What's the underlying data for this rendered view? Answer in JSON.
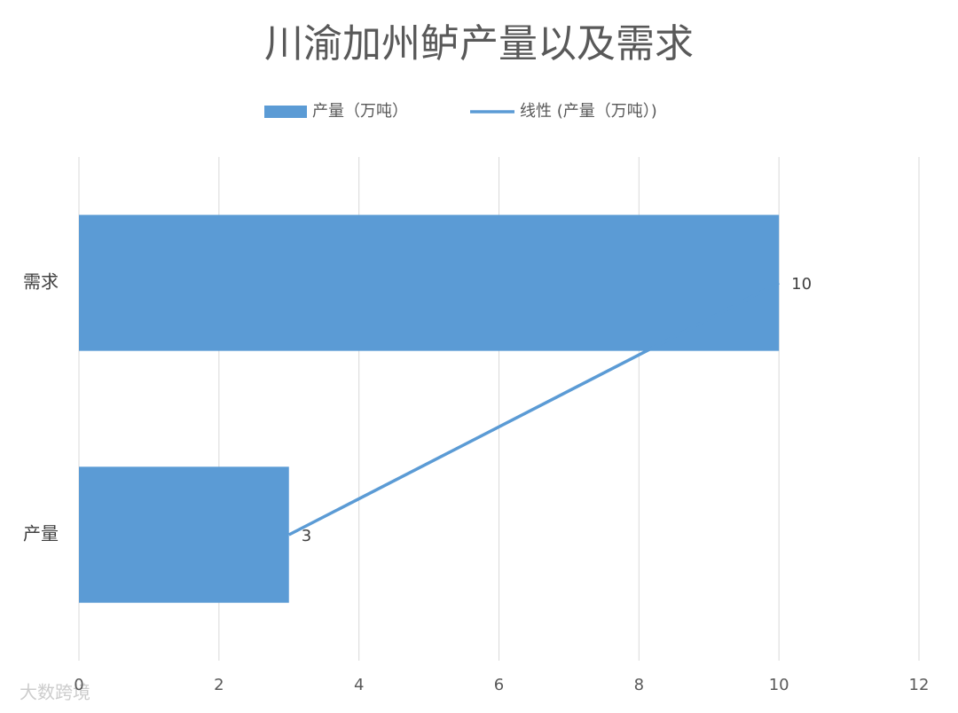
{
  "chart_data": {
    "type": "bar",
    "orientation": "horizontal",
    "title": "川渝加州鲈产量以及需求",
    "categories": [
      "产量",
      "需求"
    ],
    "series": [
      {
        "name": "产量（万吨）",
        "color": "#5b9bd5",
        "values": [
          3,
          10
        ]
      }
    ],
    "trendline": {
      "name": "线性 (产量（万吨）)",
      "color": "#5b9bd5",
      "kind": "linear"
    },
    "xlim": [
      0,
      12
    ],
    "xticks": [
      0,
      2,
      4,
      6,
      8,
      10,
      12
    ],
    "grid": true,
    "legend": "top",
    "watermark": "大数跨境"
  }
}
